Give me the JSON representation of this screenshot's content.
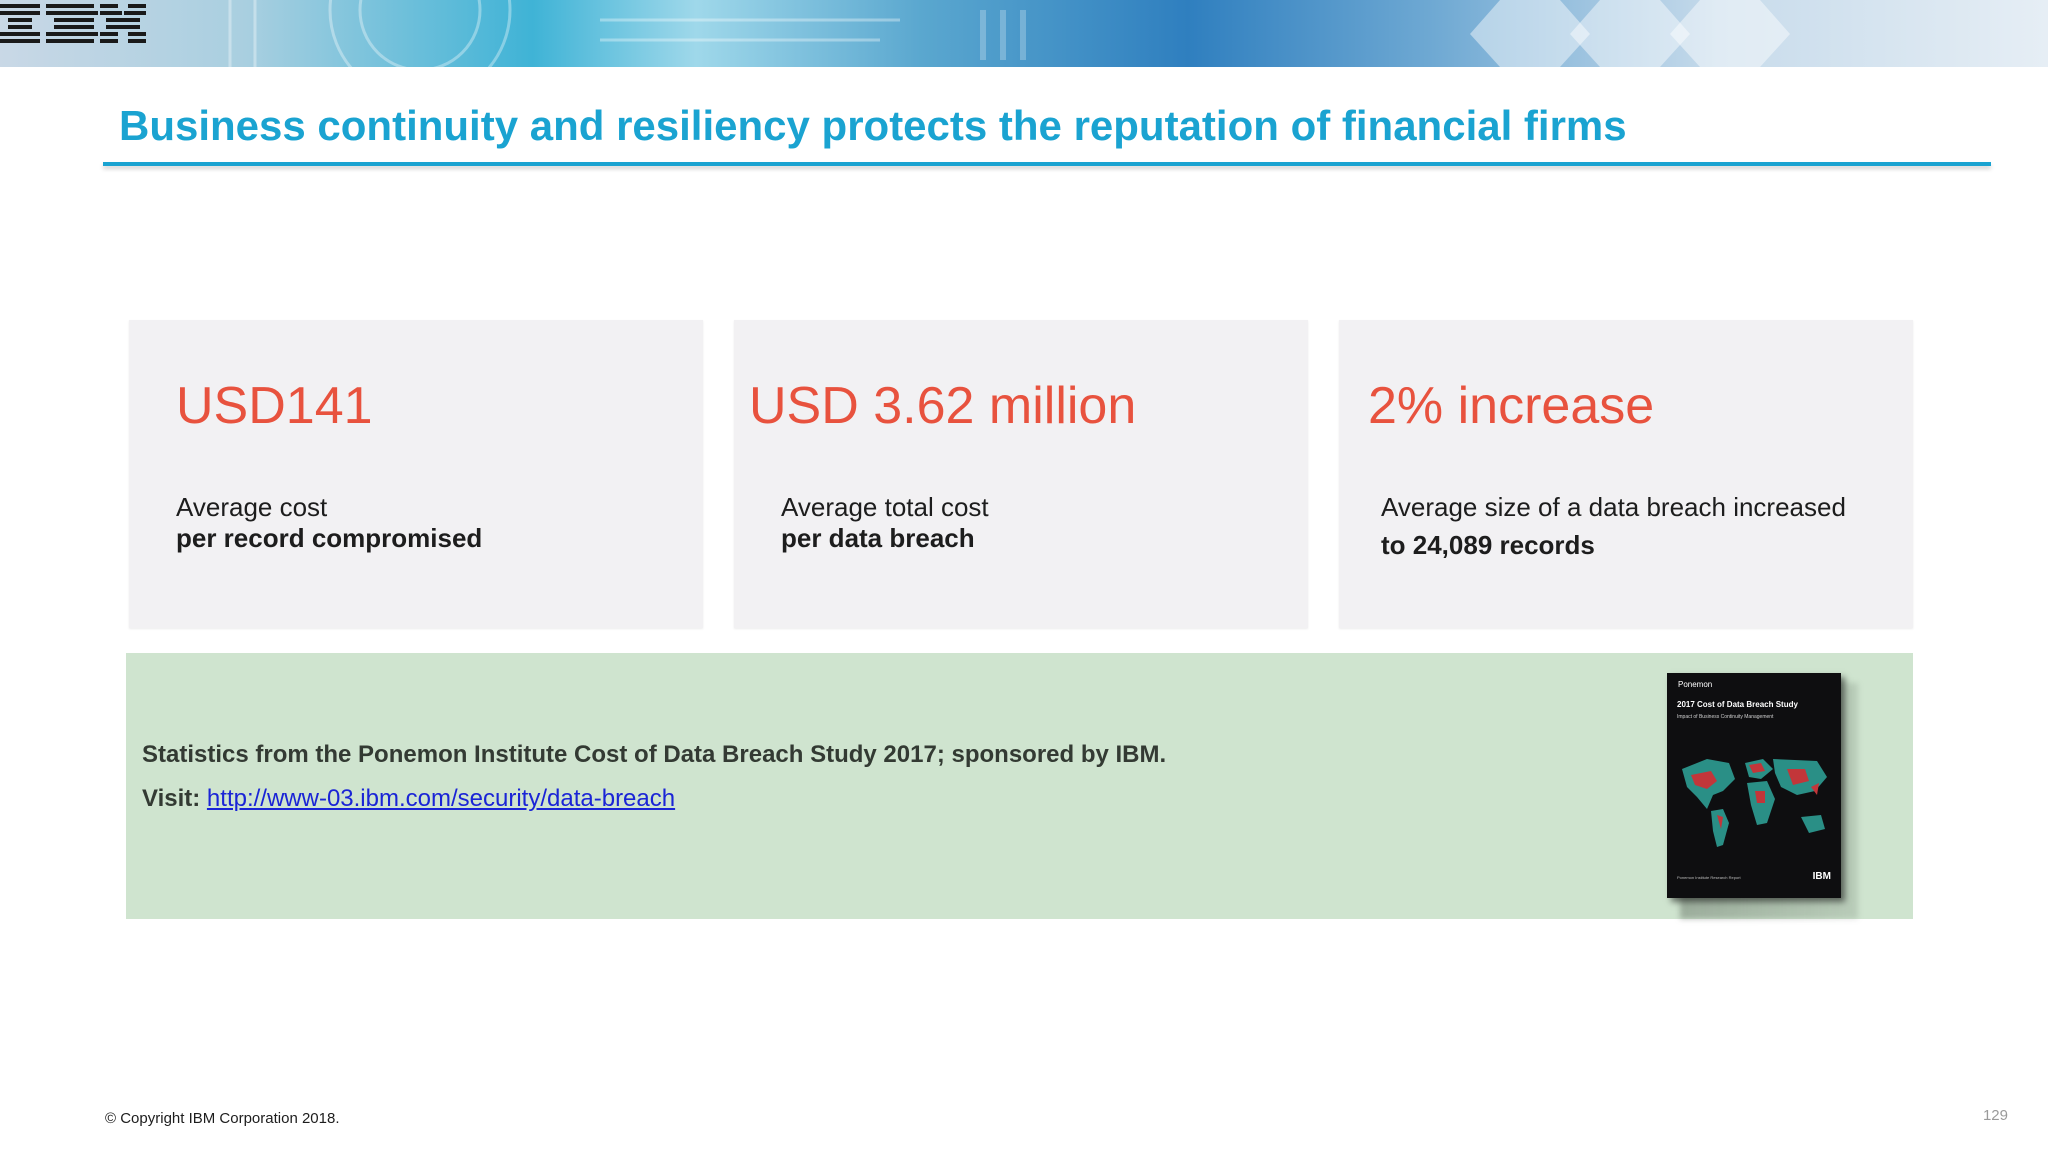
{
  "header": {
    "logo_text": "IBM"
  },
  "slide": {
    "title": "Business continuity and resiliency protects the reputation of financial firms"
  },
  "cards": [
    {
      "value": "USD141",
      "line1": "Average cost",
      "line2": "per record compromised"
    },
    {
      "value": "USD 3.62 million",
      "line1": "Average total cost",
      "line2": "per data breach"
    },
    {
      "value": "2% increase",
      "line1": "Average size of a data breach increased",
      "line2": "to 24,089 records"
    }
  ],
  "source": {
    "statement": "Statistics from the Ponemon Institute Cost of Data Breach Study 2017; sponsored by IBM.",
    "visit_label": "Visit:",
    "link_text": "http://www-03.ibm.com/security/data-breach"
  },
  "report_cover": {
    "brand": "Ponemon",
    "title": "2017 Cost of Data Breach Study",
    "subtitle": "Impact of Business Continuity Management",
    "footer": "Ponemon Institute Research Report",
    "logo": "IBM"
  },
  "footer": {
    "copyright": "© Copyright IBM Corporation 2018.",
    "page_number": "129"
  },
  "colors": {
    "title_blue": "#1aa3d1",
    "stat_red": "#e8523e",
    "card_bg": "#f2f1f3",
    "source_bg": "#cfe4cf",
    "link_blue": "#1a24d6"
  }
}
